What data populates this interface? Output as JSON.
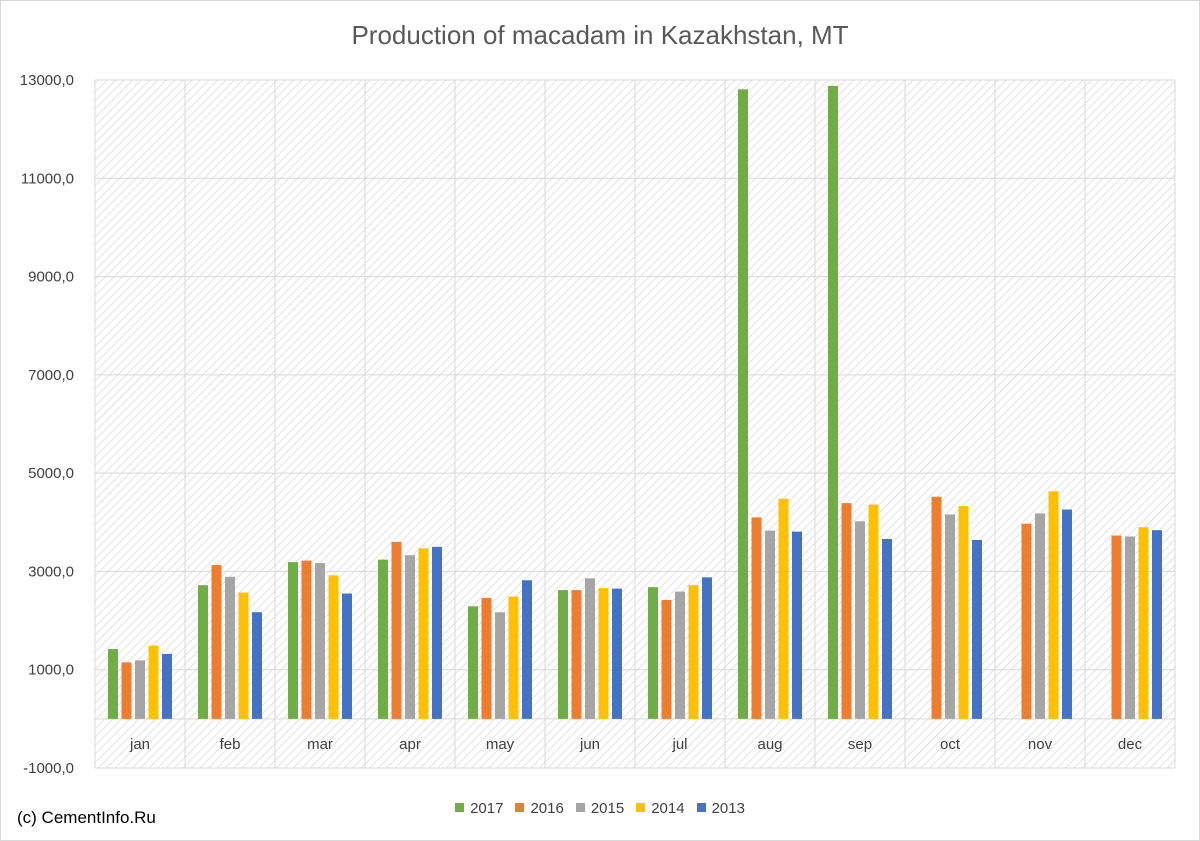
{
  "chart_data": {
    "type": "bar",
    "title": "Production of macadam in Kazakhstan, MT",
    "xlabel": "",
    "ylabel": "",
    "ylim": [
      -1000,
      13000
    ],
    "yticks": [
      -1000,
      1000,
      3000,
      5000,
      7000,
      9000,
      11000,
      13000
    ],
    "ytick_labels": [
      "-1000,0",
      "1000,0",
      "3000,0",
      "5000,0",
      "7000,0",
      "9000,0",
      "11000,0",
      "13000,0"
    ],
    "grid": true,
    "legend_position": "bottom",
    "categories": [
      "jan",
      "feb",
      "mar",
      "apr",
      "may",
      "jun",
      "jul",
      "aug",
      "sep",
      "oct",
      "nov",
      "dec"
    ],
    "series": [
      {
        "name": "2017",
        "color": "#70ad47",
        "values": [
          1420,
          2720,
          3190,
          3240,
          2290,
          2620,
          2680,
          12810,
          12880,
          null,
          null,
          null
        ]
      },
      {
        "name": "2016",
        "color": "#ed7d31",
        "values": [
          1150,
          3130,
          3220,
          3600,
          2460,
          2620,
          2420,
          4100,
          4390,
          4520,
          3970,
          3730
        ]
      },
      {
        "name": "2015",
        "color": "#a5a5a5",
        "values": [
          1190,
          2890,
          3170,
          3330,
          2170,
          2860,
          2590,
          3830,
          4020,
          4160,
          4180,
          3710
        ]
      },
      {
        "name": "2014",
        "color": "#ffc000",
        "values": [
          1490,
          2570,
          2920,
          3470,
          2490,
          2660,
          2720,
          4480,
          4360,
          4330,
          4630,
          3900
        ]
      },
      {
        "name": "2013",
        "color": "#4472c4",
        "values": [
          1320,
          2170,
          2550,
          3500,
          2820,
          2650,
          2880,
          3810,
          3660,
          3640,
          4260,
          3840
        ]
      }
    ]
  },
  "credit": "(c) CementInfo.Ru"
}
